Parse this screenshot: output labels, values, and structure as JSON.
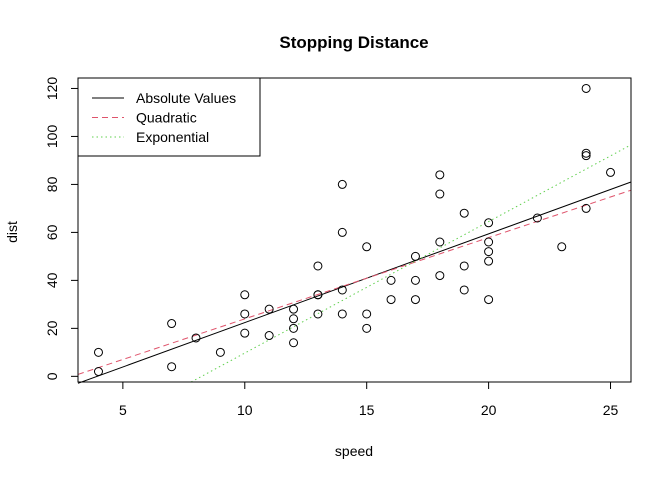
{
  "chart_data": {
    "type": "scatter",
    "title": "Stopping Distance",
    "xlabel": "speed",
    "ylabel": "dist",
    "xlim": [
      3.16,
      25.84
    ],
    "ylim": [
      -2.36,
      124.36
    ],
    "x_ticks": [
      5,
      10,
      15,
      20,
      25
    ],
    "y_ticks": [
      0,
      20,
      40,
      60,
      80,
      100,
      120
    ],
    "grid": false,
    "legend_position": "top-left",
    "points": [
      {
        "x": 4,
        "y": 2
      },
      {
        "x": 4,
        "y": 10
      },
      {
        "x": 7,
        "y": 4
      },
      {
        "x": 7,
        "y": 22
      },
      {
        "x": 8,
        "y": 16
      },
      {
        "x": 9,
        "y": 10
      },
      {
        "x": 10,
        "y": 18
      },
      {
        "x": 10,
        "y": 26
      },
      {
        "x": 10,
        "y": 34
      },
      {
        "x": 11,
        "y": 17
      },
      {
        "x": 11,
        "y": 28
      },
      {
        "x": 12,
        "y": 14
      },
      {
        "x": 12,
        "y": 20
      },
      {
        "x": 12,
        "y": 24
      },
      {
        "x": 12,
        "y": 28
      },
      {
        "x": 13,
        "y": 26
      },
      {
        "x": 13,
        "y": 34
      },
      {
        "x": 13,
        "y": 34
      },
      {
        "x": 13,
        "y": 46
      },
      {
        "x": 14,
        "y": 26
      },
      {
        "x": 14,
        "y": 36
      },
      {
        "x": 14,
        "y": 60
      },
      {
        "x": 14,
        "y": 80
      },
      {
        "x": 15,
        "y": 20
      },
      {
        "x": 15,
        "y": 26
      },
      {
        "x": 15,
        "y": 54
      },
      {
        "x": 16,
        "y": 32
      },
      {
        "x": 16,
        "y": 40
      },
      {
        "x": 17,
        "y": 32
      },
      {
        "x": 17,
        "y": 40
      },
      {
        "x": 17,
        "y": 50
      },
      {
        "x": 18,
        "y": 42
      },
      {
        "x": 18,
        "y": 56
      },
      {
        "x": 18,
        "y": 76
      },
      {
        "x": 18,
        "y": 84
      },
      {
        "x": 19,
        "y": 36
      },
      {
        "x": 19,
        "y": 46
      },
      {
        "x": 19,
        "y": 68
      },
      {
        "x": 20,
        "y": 32
      },
      {
        "x": 20,
        "y": 48
      },
      {
        "x": 20,
        "y": 52
      },
      {
        "x": 20,
        "y": 56
      },
      {
        "x": 20,
        "y": 64
      },
      {
        "x": 22,
        "y": 66
      },
      {
        "x": 23,
        "y": 54
      },
      {
        "x": 24,
        "y": 70
      },
      {
        "x": 24,
        "y": 92
      },
      {
        "x": 24,
        "y": 93
      },
      {
        "x": 24,
        "y": 120
      },
      {
        "x": 25,
        "y": 85
      }
    ],
    "series": [
      {
        "name": "Absolute Values",
        "color": "#000000",
        "dash": "solid",
        "line": [
          [
            3.16,
            -2.9
          ],
          [
            25.84,
            81.0
          ]
        ]
      },
      {
        "name": "Quadratic",
        "color": "#df536b",
        "dash": "dashed",
        "line": [
          [
            3.16,
            0.8
          ],
          [
            25.84,
            77.6
          ]
        ]
      },
      {
        "name": "Exponential",
        "color": "#61d04f",
        "dash": "dotted",
        "line": [
          [
            7.8,
            -2.36
          ],
          [
            25.84,
            96.5
          ]
        ]
      }
    ]
  }
}
